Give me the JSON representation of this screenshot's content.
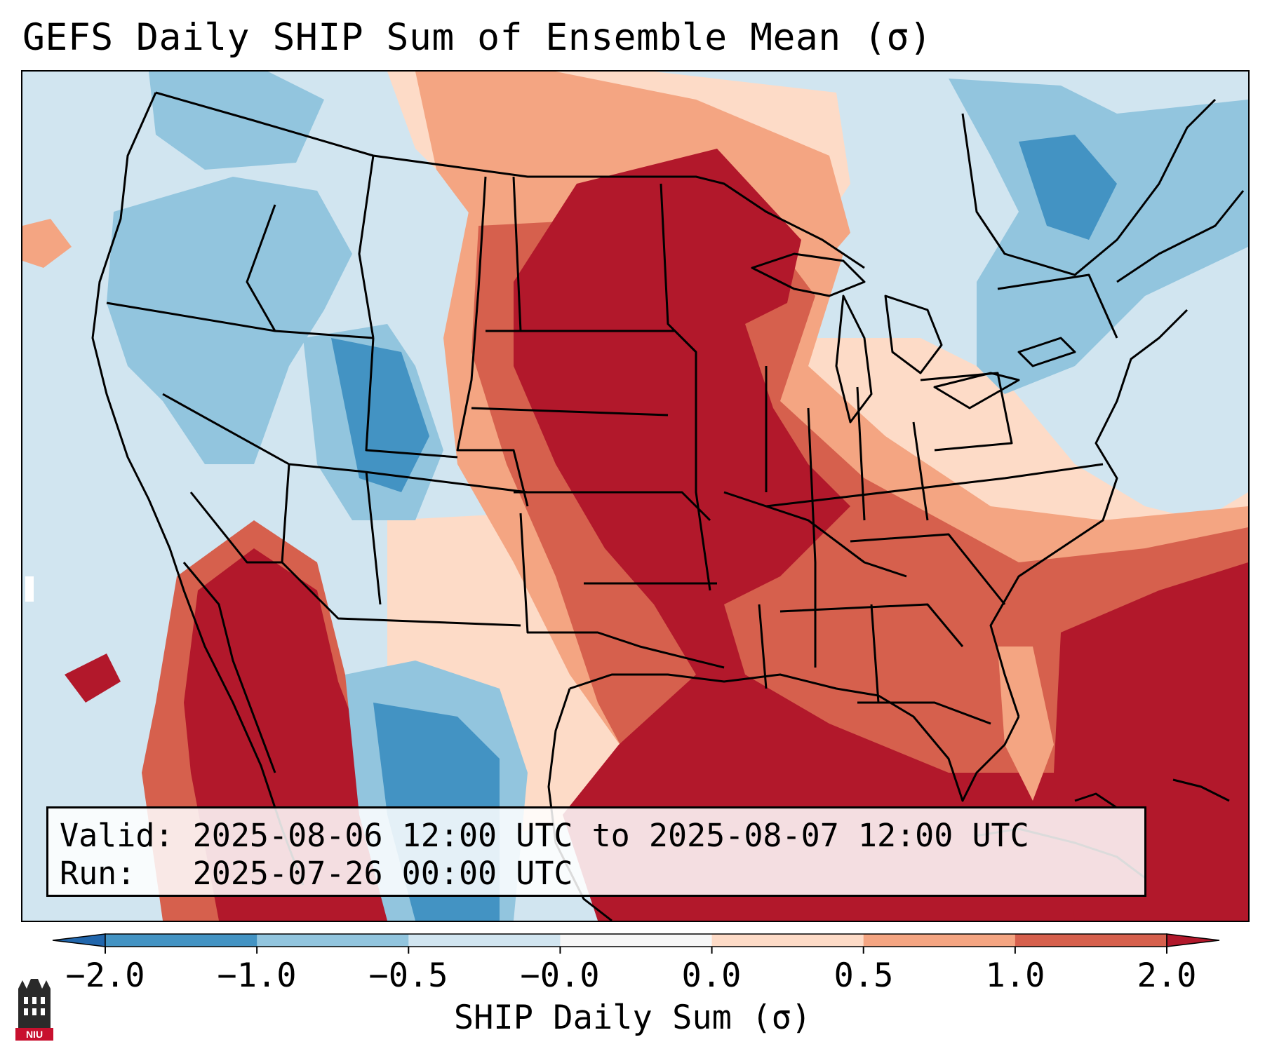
{
  "title": "GEFS Daily SHIP Sum of Ensemble Mean (σ)",
  "info": {
    "valid_label": "Valid:",
    "valid_range": "2025-08-06 12:00 UTC to 2025-08-07 12:00 UTC",
    "run_label": "Run:",
    "run_time": "2025-07-26 00:00 UTC"
  },
  "colorbar": {
    "label": "SHIP Daily Sum (σ)",
    "ticks": [
      "−2.0",
      "−1.0",
      "−0.5",
      "−0.0",
      "0.0",
      "0.5",
      "1.0",
      "2.0"
    ],
    "bins": [
      {
        "range": "< -2.0",
        "color": "#2166ac"
      },
      {
        "range": "-2.0 to -1.0",
        "color": "#4393c3"
      },
      {
        "range": "-1.0 to -0.5",
        "color": "#92c5de"
      },
      {
        "range": "-0.5 to -0.0",
        "color": "#d1e5f0"
      },
      {
        "range": "-0.0 to 0.0",
        "color": "#f7f7f7"
      },
      {
        "range": "0.0 to 0.5",
        "color": "#fddbc7"
      },
      {
        "range": "0.5 to 1.0",
        "color": "#f4a582"
      },
      {
        "range": "1.0 to 2.0",
        "color": "#d6604d"
      },
      {
        "range": "> 2.0",
        "color": "#b2182b"
      }
    ]
  },
  "logo": {
    "text": "NIU",
    "name": "Northern Illinois University"
  }
}
